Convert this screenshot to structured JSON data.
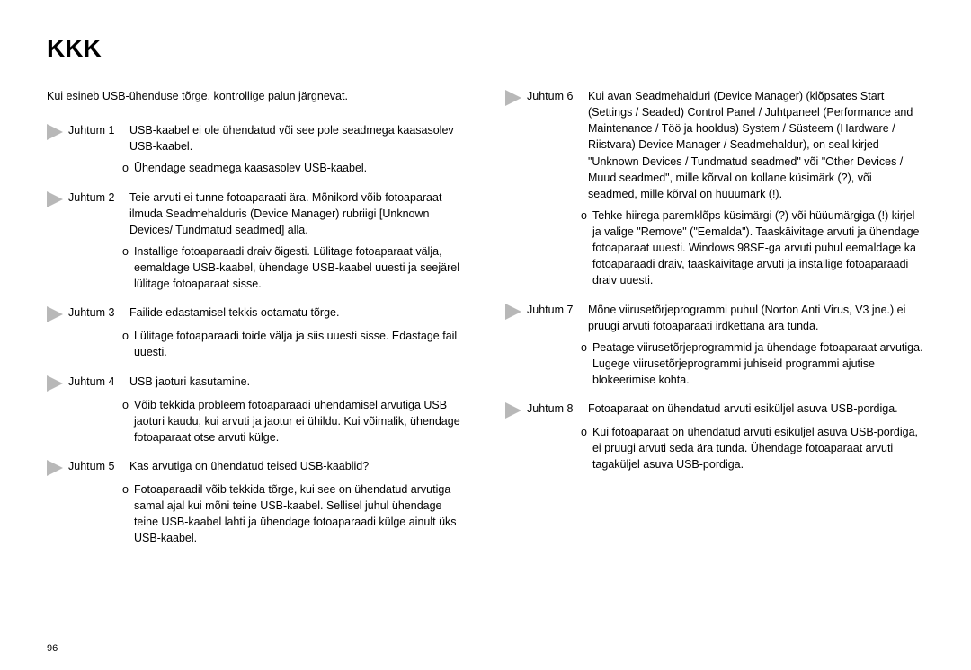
{
  "title": "KKK",
  "intro": "Kui esineb USB-ühenduse tõrge, kontrollige palun järgnevat.",
  "left": [
    {
      "label": "Juhtum 1",
      "body": "USB-kaabel ei ole ühendatud või see pole seadmega kaasasolev USB-kaabel.",
      "reso": "Ühendage seadmega kaasasolev USB-kaabel."
    },
    {
      "label": "Juhtum 2",
      "body": "Teie arvuti ei tunne fotoaparaati ära. Mõnikord võib fotoaparaat ilmuda Seadmehalduris (Device Manager) rubriigi [Unknown Devices/ Tundmatud seadmed] alla.",
      "reso": "Installige fotoaparaadi draiv õigesti. Lülitage fotoaparaat välja, eemaldage USB-kaabel, ühendage USB-kaabel uuesti ja seejärel lülitage fotoaparaat sisse."
    },
    {
      "label": "Juhtum 3",
      "body": "Failide edastamisel tekkis ootamatu tõrge.",
      "reso": "Lülitage fotoaparaadi toide välja ja siis uuesti sisse. Edastage fail uuesti."
    },
    {
      "label": "Juhtum 4",
      "body": "USB jaoturi kasutamine.",
      "reso": "Võib tekkida probleem fotoaparaadi ühendamisel arvutiga USB jaoturi kaudu, kui arvuti ja jaotur ei ühildu. Kui võimalik, ühendage fotoaparaat otse arvuti külge."
    },
    {
      "label": "Juhtum 5",
      "body": "Kas arvutiga on ühendatud teised USB-kaablid?",
      "reso": "Fotoaparaadil võib tekkida tõrge, kui see on ühendatud arvutiga samal ajal kui mõni teine USB-kaabel. Sellisel juhul ühendage teine USB-kaabel lahti ja ühendage fotoaparaadi külge ainult üks USB-kaabel."
    }
  ],
  "right": [
    {
      "label": "Juhtum 6",
      "body": "Kui avan Seadmehalduri (Device Manager) (klõpsates Start (Settings / Seaded) Control Panel / Juhtpaneel (Performance and Maintenance / Töö ja hooldus) System / Süsteem (Hardware / Riistvara)  Device Manager / Seadmehaldur), on seal kirjed \"Unknown Devices / Tundmatud seadmed\" või \"Other Devices / Muud seadmed\", mille kõrval on kollane küsimärk (?), või seadmed, mille kõrval on hüüumärk (!).",
      "reso": "Tehke hiirega paremklõps küsimärgi (?) või hüüumärgiga (!) kirjel ja valige \"Remove\" (\"Eemalda\"). Taaskäivitage arvuti ja ühendage fotoaparaat uuesti. Windows 98SE-ga arvuti puhul eemaldage ka fotoaparaadi draiv, taaskäivitage arvuti ja installige fotoaparaadi draiv uuesti."
    },
    {
      "label": "Juhtum 7",
      "body": "Mõne viirusetõrjeprogrammi puhul (Norton Anti Virus, V3 jne.) ei pruugi arvuti fotoaparaati irdkettana ära tunda.",
      "reso": "Peatage viirusetõrjeprogrammid ja ühendage fotoaparaat arvutiga. Lugege viirusetõrjeprogrammi juhiseid programmi ajutise blokeerimise kohta."
    },
    {
      "label": "Juhtum 8",
      "body": "Fotoaparaat on ühendatud arvuti esiküljel asuva USB-pordiga.",
      "reso": "Kui fotoaparaat on ühendatud arvuti esiküljel asuva USB-pordiga, ei pruugi arvuti seda ära tunda. Ühendage fotoaparaat arvuti tagaküljel asuva USB-pordiga."
    }
  ],
  "page_number": "96",
  "bullet_mark": "o"
}
